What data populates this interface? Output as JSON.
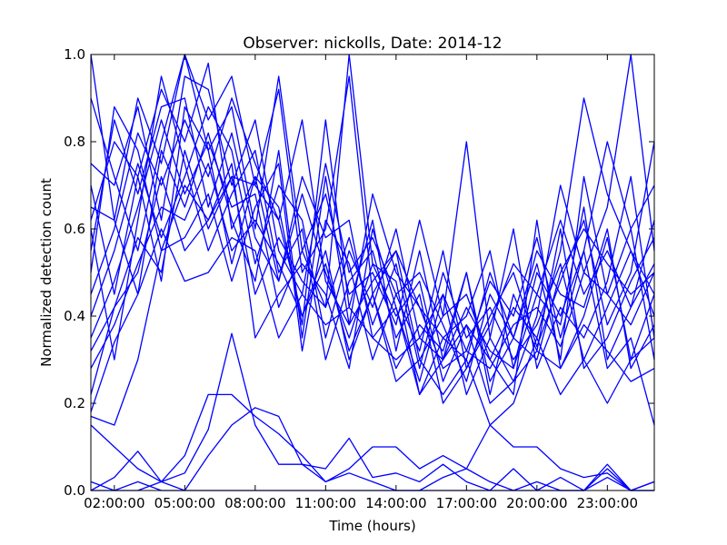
{
  "chart_data": {
    "type": "line",
    "title": "Observer: nickolls, Date: 2014-12",
    "xlabel": "Time (hours)",
    "ylabel": "Normalized detection count",
    "x_unit": "hours",
    "x_ticks": [
      2,
      5,
      8,
      11,
      14,
      17,
      20,
      23
    ],
    "x_tick_labels": [
      "02:00:00",
      "05:00:00",
      "08:00:00",
      "11:00:00",
      "14:00:00",
      "17:00:00",
      "20:00:00",
      "23:00:00"
    ],
    "xlim": [
      1,
      25
    ],
    "y_ticks": [
      0,
      0.2,
      0.4,
      0.6,
      0.8,
      1.0
    ],
    "y_tick_labels": [
      "0.0",
      "0.2",
      "0.4",
      "0.6",
      "0.8",
      "1.0"
    ],
    "ylim": [
      0,
      1
    ],
    "grid": false,
    "line_color": "#0000ff",
    "x": [
      1,
      2,
      3,
      4,
      5,
      6,
      7,
      8,
      9,
      10,
      11,
      12,
      13,
      14,
      15,
      16,
      17,
      18,
      19,
      20,
      21,
      22,
      23,
      24,
      25
    ],
    "series": [
      {
        "values": [
          1.0,
          0.62,
          0.9,
          0.75,
          1.0,
          0.85,
          0.95,
          0.7,
          0.92,
          0.5,
          0.6,
          0.95,
          0.45,
          0.55,
          0.3,
          0.4,
          0.8,
          0.35,
          0.25,
          0.4,
          0.7,
          0.5,
          0.65,
          1.0,
          0.55
        ]
      },
      {
        "values": [
          0.9,
          0.72,
          0.55,
          0.8,
          1.0,
          0.78,
          0.88,
          0.6,
          0.95,
          0.55,
          0.42,
          1.0,
          0.52,
          0.4,
          0.48,
          0.25,
          0.38,
          0.3,
          0.42,
          0.35,
          0.55,
          0.9,
          0.68,
          0.55,
          0.45
        ]
      },
      {
        "values": [
          0.75,
          0.7,
          0.88,
          0.62,
          0.95,
          0.92,
          0.7,
          0.85,
          0.55,
          0.45,
          0.75,
          0.5,
          0.58,
          0.45,
          0.32,
          0.55,
          0.28,
          0.4,
          0.5,
          0.33,
          0.48,
          0.62,
          0.38,
          0.5,
          0.8
        ]
      },
      {
        "values": [
          0.62,
          0.8,
          0.72,
          0.92,
          0.8,
          0.98,
          0.6,
          0.72,
          0.65,
          0.38,
          0.85,
          0.42,
          0.62,
          0.32,
          0.55,
          0.3,
          0.5,
          0.25,
          0.35,
          0.52,
          0.3,
          0.72,
          0.45,
          0.38,
          0.5
        ]
      },
      {
        "values": [
          0.55,
          0.85,
          0.68,
          0.88,
          0.9,
          0.65,
          0.82,
          0.58,
          0.48,
          0.72,
          0.58,
          0.62,
          0.35,
          0.42,
          0.22,
          0.35,
          0.4,
          0.55,
          0.28,
          0.45,
          0.62,
          0.45,
          0.55,
          0.42,
          0.62
        ]
      },
      {
        "values": [
          0.45,
          0.6,
          0.82,
          0.7,
          0.85,
          0.72,
          0.9,
          0.75,
          0.62,
          0.85,
          0.48,
          0.38,
          0.68,
          0.5,
          0.42,
          0.28,
          0.32,
          0.48,
          0.4,
          0.58,
          0.35,
          0.55,
          0.8,
          0.6,
          0.7
        ]
      },
      {
        "values": [
          0.4,
          0.55,
          0.75,
          0.58,
          0.72,
          0.88,
          0.78,
          0.52,
          0.7,
          0.62,
          0.35,
          0.55,
          0.42,
          0.6,
          0.35,
          0.45,
          0.22,
          0.35,
          0.6,
          0.28,
          0.42,
          0.35,
          0.48,
          0.72,
          0.35
        ]
      },
      {
        "values": [
          0.35,
          0.48,
          0.65,
          0.85,
          0.68,
          0.8,
          0.65,
          0.68,
          0.42,
          0.55,
          0.68,
          0.45,
          0.5,
          0.38,
          0.62,
          0.4,
          0.45,
          0.3,
          0.22,
          0.62,
          0.28,
          0.4,
          0.58,
          0.3,
          0.45
        ]
      },
      {
        "values": [
          0.32,
          0.42,
          0.58,
          0.5,
          0.78,
          0.6,
          0.72,
          0.45,
          0.58,
          0.48,
          0.42,
          0.58,
          0.38,
          0.52,
          0.28,
          0.5,
          0.35,
          0.42,
          0.3,
          0.38,
          0.52,
          0.3,
          0.42,
          0.55,
          0.4
        ]
      },
      {
        "values": [
          0.28,
          0.38,
          0.52,
          0.65,
          0.62,
          0.75,
          0.55,
          0.62,
          0.52,
          0.4,
          0.52,
          0.32,
          0.45,
          0.28,
          0.38,
          0.32,
          0.5,
          0.22,
          0.45,
          0.32,
          0.6,
          0.28,
          0.35,
          0.48,
          0.58
        ]
      },
      {
        "values": [
          0.6,
          0.3,
          0.62,
          0.95,
          0.75,
          0.55,
          0.68,
          0.78,
          0.5,
          0.6,
          0.3,
          0.48,
          0.55,
          0.35,
          0.45,
          0.2,
          0.28,
          0.38,
          0.52,
          0.45,
          0.38,
          0.65,
          0.3,
          0.42,
          0.52
        ]
      },
      {
        "values": [
          0.5,
          0.88,
          0.78,
          0.55,
          0.58,
          0.68,
          0.48,
          0.65,
          0.75,
          0.32,
          0.62,
          0.52,
          0.3,
          0.45,
          0.5,
          0.38,
          0.25,
          0.45,
          0.35,
          0.55,
          0.45,
          0.42,
          0.6,
          0.28,
          0.38
        ]
      },
      {
        "values": [
          0.22,
          0.42,
          0.5,
          0.72,
          0.55,
          0.62,
          0.75,
          0.35,
          0.45,
          0.52,
          0.45,
          0.28,
          0.6,
          0.42,
          0.25,
          0.45,
          0.32,
          0.28,
          0.38,
          0.42,
          0.33,
          0.5,
          0.45,
          0.6,
          0.3
        ]
      },
      {
        "values": [
          0.18,
          0.34,
          0.45,
          0.6,
          0.48,
          0.5,
          0.58,
          0.55,
          0.35,
          0.45,
          0.38,
          0.42,
          0.35,
          0.3,
          0.35,
          0.3,
          0.38,
          0.2,
          0.25,
          0.32,
          0.28,
          0.38,
          0.32,
          0.25,
          0.28
        ]
      },
      {
        "values": [
          0.17,
          0.15,
          0.3,
          0.55,
          0.7,
          0.62,
          0.72,
          0.7,
          0.62,
          0.4,
          0.55,
          0.3,
          0.45,
          0.25,
          0.3,
          0.22,
          0.3,
          0.15,
          0.2,
          0.35,
          0.22,
          0.3,
          0.2,
          0.3,
          0.35
        ]
      },
      {
        "values": [
          0.7,
          0.45,
          0.72,
          0.48,
          0.88,
          0.78,
          0.52,
          0.72,
          0.48,
          0.68,
          0.5,
          0.35,
          0.52,
          0.48,
          0.22,
          0.3,
          0.42,
          0.32,
          0.28,
          0.5,
          0.4,
          0.55,
          0.28,
          0.35,
          0.15
        ]
      },
      {
        "values": [
          0.65,
          0.62,
          0.45,
          0.78,
          0.65,
          0.82,
          0.62,
          0.48,
          0.78,
          0.35,
          0.72,
          0.38,
          0.48,
          0.55,
          0.42,
          0.35,
          0.3,
          0.5,
          0.35,
          0.3,
          0.5,
          0.6,
          0.52,
          0.45,
          0.5
        ]
      },
      {
        "values": [
          0.15,
          0.1,
          0.05,
          0.02,
          0.08,
          0.22,
          0.22,
          0.17,
          0.13,
          0.08,
          0.02,
          0.05,
          0.1,
          0.1,
          0.05,
          0.08,
          0.05,
          0.15,
          0.1,
          0.1,
          0.05,
          0.03,
          0.04,
          0.0,
          0.02
        ]
      },
      {
        "values": [
          0.02,
          0.0,
          0.02,
          0.0,
          0.0,
          0.08,
          0.15,
          0.19,
          0.17,
          0.06,
          0.05,
          0.12,
          0.03,
          0.04,
          0.02,
          0.06,
          0.02,
          0.0,
          0.05,
          0.0,
          0.03,
          0.0,
          0.05,
          0.0,
          0.0
        ]
      },
      {
        "values": [
          0.0,
          0.03,
          0.09,
          0.02,
          0.04,
          0.14,
          0.36,
          0.15,
          0.06,
          0.06,
          0.02,
          0.04,
          0.02,
          0.0,
          0.0,
          0.03,
          0.05,
          0.02,
          0.0,
          0.02,
          0.0,
          0.0,
          0.03,
          0.0,
          0.02
        ]
      },
      {
        "values": [
          0.0,
          0.0,
          0.0,
          0.02,
          0.0,
          0.0,
          0.0,
          0.0,
          0.0,
          0.0,
          0.0,
          0.0,
          0.0,
          0.0,
          0.0,
          0.0,
          0.0,
          0.0,
          0.0,
          0.0,
          0.0,
          0.0,
          0.06,
          0.0,
          0.0
        ]
      }
    ]
  }
}
